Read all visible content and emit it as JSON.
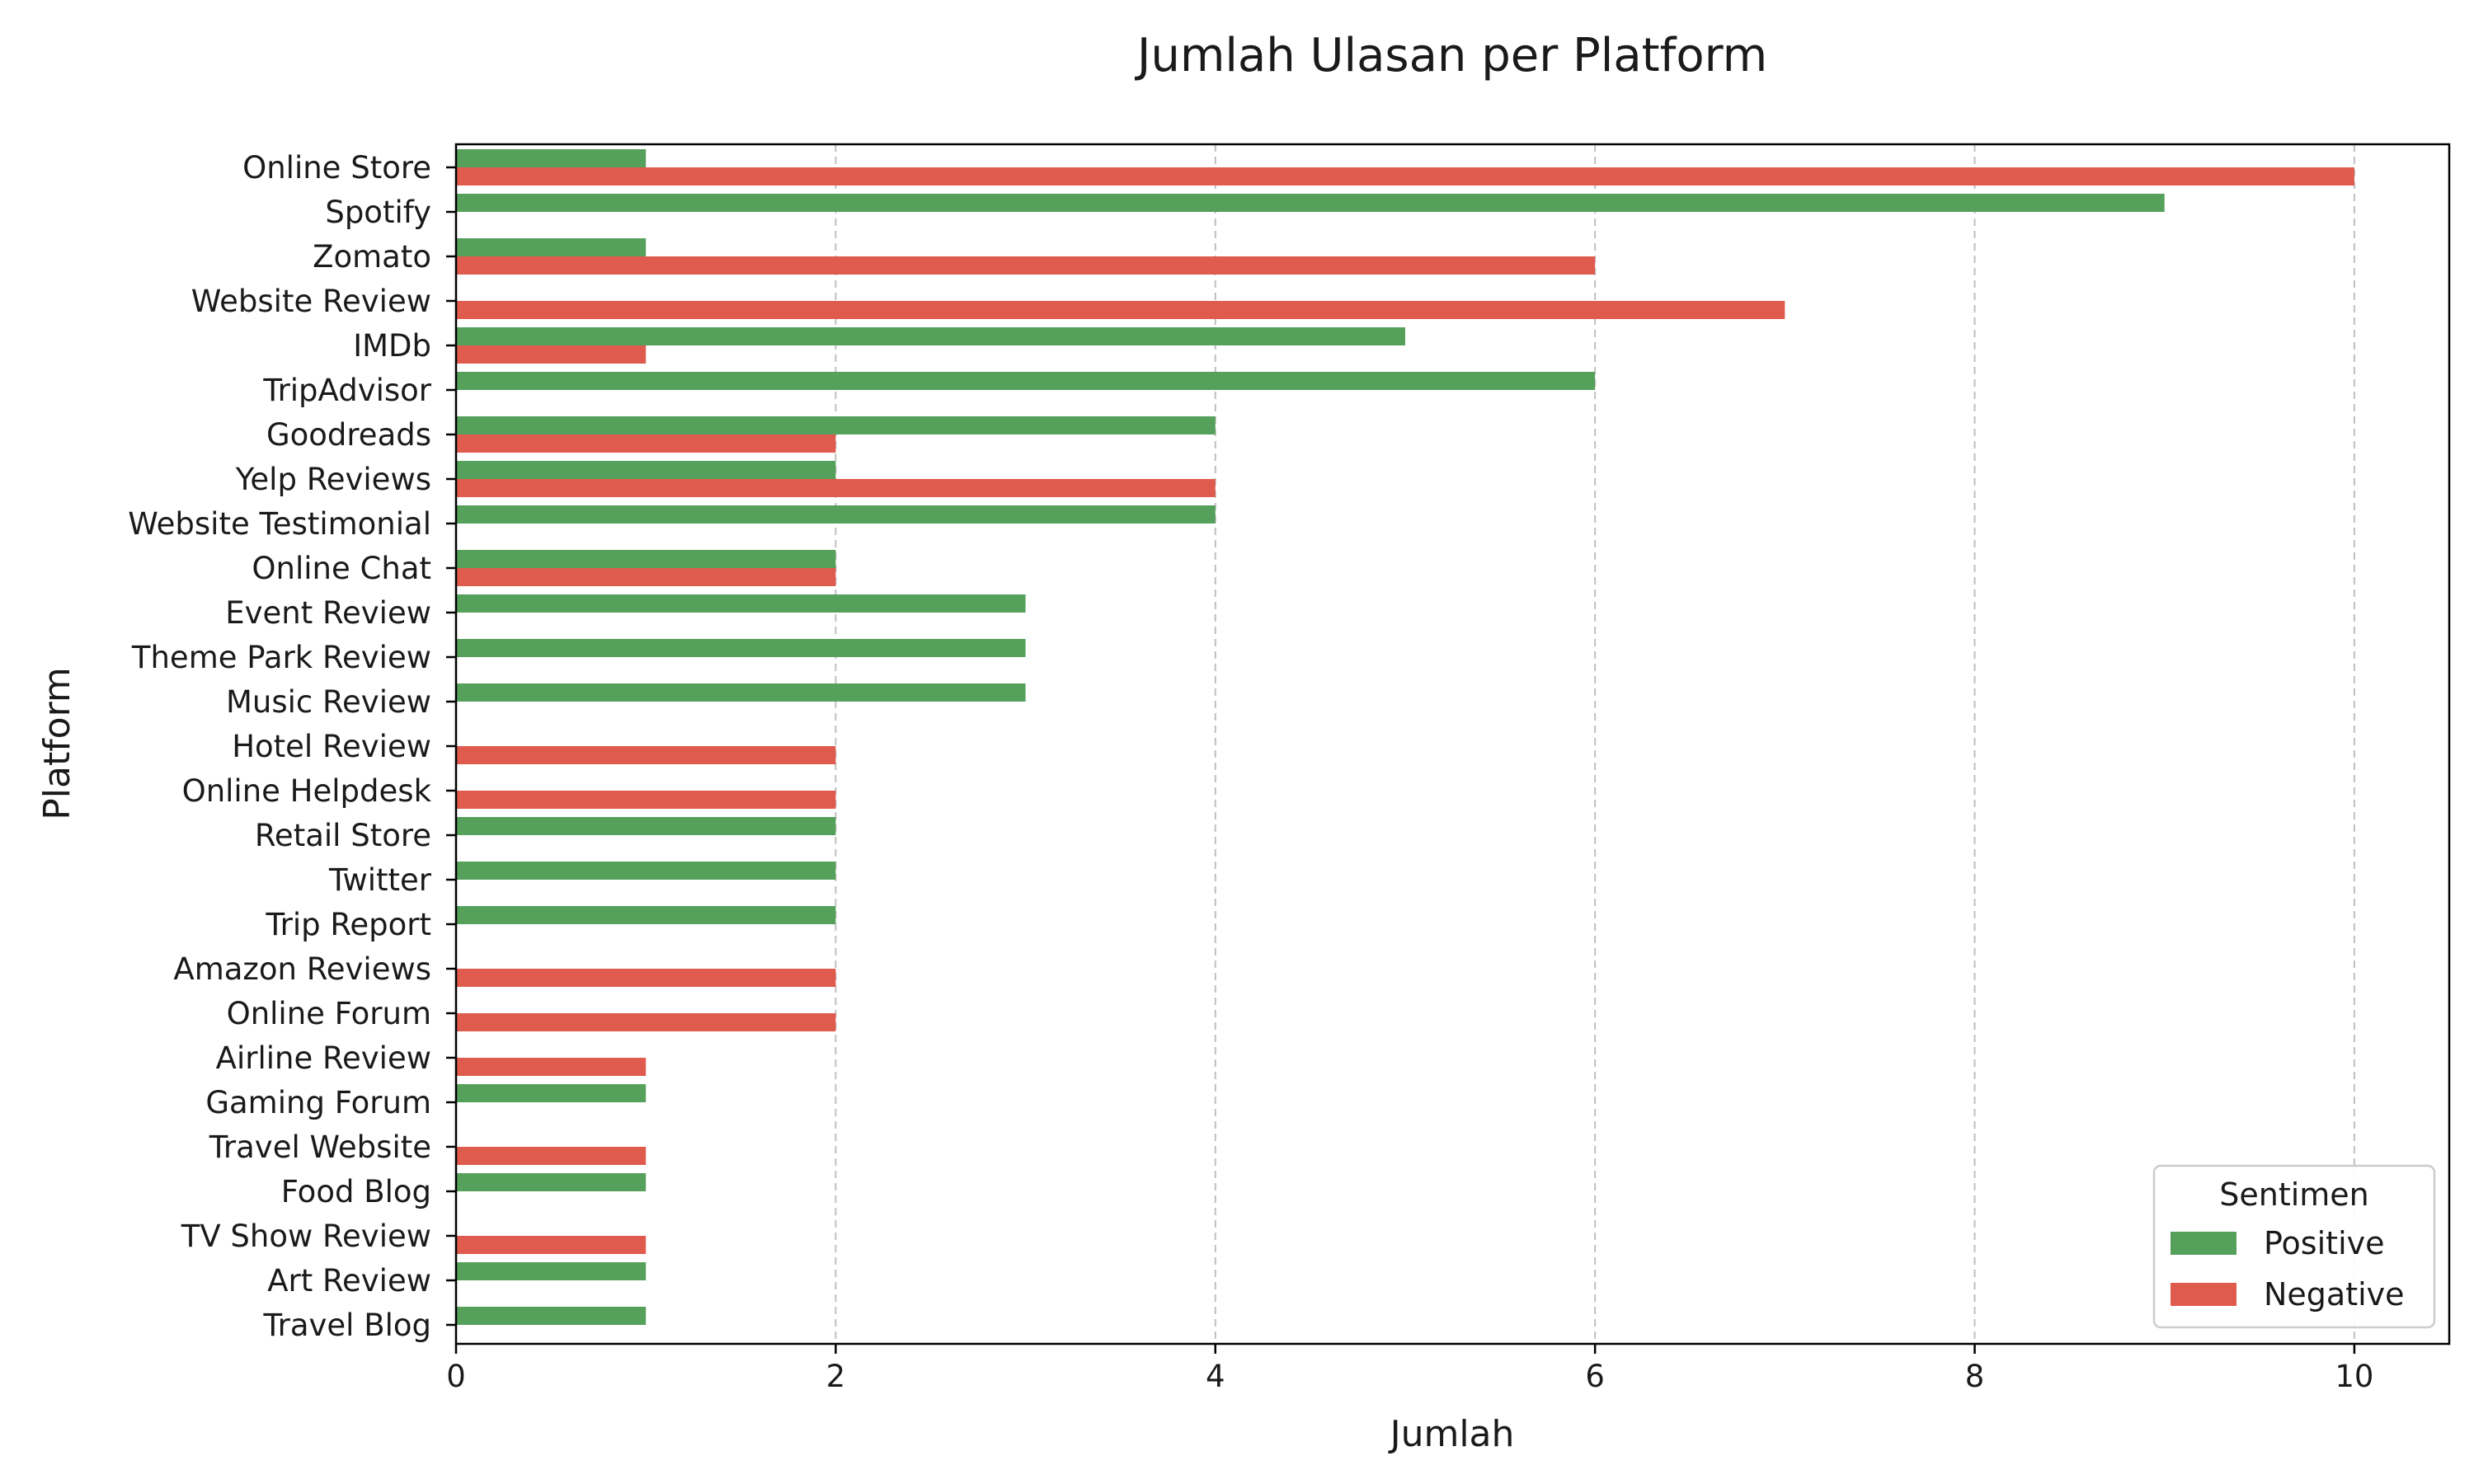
{
  "chart_data": {
    "type": "bar",
    "orientation": "horizontal",
    "title": "Jumlah Ulasan per Platform",
    "xlabel": "Jumlah",
    "ylabel": "Platform",
    "xlim": [
      0,
      10.5
    ],
    "xticks": [
      0,
      2,
      4,
      6,
      8,
      10
    ],
    "grid": "x-dashed",
    "legend": {
      "title": "Sentimen",
      "placement": "lower-right"
    },
    "categories": [
      "Online Store",
      "Spotify",
      "Zomato",
      "Website Review",
      "IMDb",
      "TripAdvisor",
      "Goodreads",
      "Yelp Reviews",
      "Website Testimonial",
      "Online Chat",
      "Event Review",
      "Theme Park Review",
      "Music Review",
      "Hotel Review",
      "Online Helpdesk",
      "Retail Store",
      "Twitter",
      "Trip Report",
      "Amazon Reviews",
      "Online Forum",
      "Airline Review",
      "Gaming Forum",
      "Travel Website",
      "Food Blog",
      "TV Show Review",
      "Art Review",
      "Travel Blog"
    ],
    "series": [
      {
        "name": "Positive",
        "color": "#55a05b",
        "values": [
          1,
          9,
          1,
          0,
          5,
          6,
          4,
          2,
          4,
          2,
          3,
          3,
          3,
          0,
          0,
          2,
          2,
          2,
          0,
          0,
          0,
          1,
          0,
          1,
          0,
          1,
          1
        ]
      },
      {
        "name": "Negative",
        "color": "#df5b4d",
        "values": [
          10,
          0,
          6,
          7,
          1,
          0,
          2,
          4,
          0,
          2,
          0,
          0,
          0,
          2,
          2,
          0,
          0,
          0,
          2,
          2,
          1,
          0,
          1,
          0,
          1,
          0,
          0
        ]
      }
    ]
  }
}
